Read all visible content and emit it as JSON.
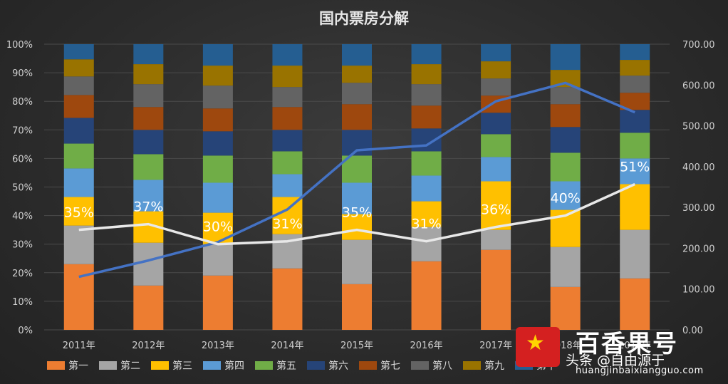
{
  "chart_data": {
    "type": "bar",
    "stacked_percent": true,
    "title": "国内票房分解",
    "categories": [
      "2011年",
      "2012年",
      "2013年",
      "2014年",
      "2015年",
      "2016年",
      "2017年",
      "2018年",
      "2019年"
    ],
    "y_left": {
      "ylim": [
        0,
        100
      ],
      "ticks": [
        "0%",
        "10%",
        "20%",
        "30%",
        "40%",
        "50%",
        "60%",
        "70%",
        "80%",
        "90%",
        "100%"
      ]
    },
    "y_right": {
      "ylim": [
        0,
        700
      ],
      "ticks": [
        "0.00",
        "100.00",
        "200.00",
        "300.00",
        "400.00",
        "500.00",
        "600.00",
        "700.00"
      ]
    },
    "series": [
      {
        "name": "第一",
        "color": "#ed7d31",
        "values": [
          23,
          15.5,
          19,
          21.5,
          16,
          24,
          28,
          15,
          18
        ]
      },
      {
        "name": "第二",
        "color": "#a5a5a5",
        "values": [
          13.5,
          15,
          11,
          12,
          15.5,
          12,
          7,
          14,
          17
        ]
      },
      {
        "name": "第三",
        "color": "#ffc000",
        "values": [
          10,
          11,
          11,
          13,
          9,
          9,
          17,
          13,
          16
        ]
      },
      {
        "name": "第四",
        "color": "#5b9bd5",
        "values": [
          10,
          11,
          10.5,
          8,
          11,
          9,
          8.5,
          10,
          9
        ]
      },
      {
        "name": "第五",
        "color": "#70ad47",
        "values": [
          8.7,
          9,
          9.5,
          8,
          9.5,
          8.5,
          8,
          10,
          9
        ]
      },
      {
        "name": "第六",
        "color": "#264478",
        "values": [
          9,
          8.5,
          8.5,
          7.5,
          9,
          8,
          7.5,
          9,
          8
        ]
      },
      {
        "name": "第七",
        "color": "#9e480e",
        "values": [
          8,
          8,
          8,
          8,
          9,
          8,
          6,
          8,
          6
        ]
      },
      {
        "name": "第八",
        "color": "#636363",
        "values": [
          6.5,
          8,
          8,
          7,
          7.5,
          7.5,
          6,
          6,
          6
        ]
      },
      {
        "name": "第九",
        "color": "#997300",
        "values": [
          6,
          7,
          7,
          7.5,
          6,
          7,
          6,
          6,
          5.5
        ]
      },
      {
        "name": "第十",
        "color": "#255e91",
        "values": [
          5.3,
          7,
          7.5,
          7.5,
          7.5,
          7,
          6,
          9,
          5.5
        ]
      }
    ],
    "line_series": [
      {
        "axis": "right",
        "color": "#4472c4",
        "values": [
          130,
          170,
          215,
          295,
          440,
          452,
          560,
          605,
          533
        ]
      },
      {
        "axis": "left",
        "color": "#e8e8e8",
        "values": [
          35,
          37,
          30,
          31,
          35,
          31,
          36,
          40,
          51
        ],
        "labels": [
          "35%",
          "37%",
          "30%",
          "31%",
          "35%",
          "31%",
          "36%",
          "40%",
          "51%"
        ]
      }
    ]
  },
  "watermark": {
    "brand": "百香果号",
    "source": "头条 @自由源于",
    "url": "huangjinbaixiangguo.com"
  }
}
